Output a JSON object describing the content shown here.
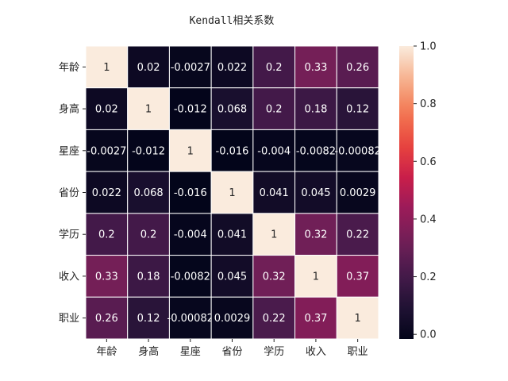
{
  "chart_data": {
    "type": "heatmap",
    "title": "Kendall相关系数",
    "labels": [
      "年龄",
      "身高",
      "星座",
      "省份",
      "学历",
      "收入",
      "职业"
    ],
    "values": [
      [
        1,
        0.02,
        -0.0027,
        0.022,
        0.2,
        0.33,
        0.26
      ],
      [
        0.02,
        1,
        -0.012,
        0.068,
        0.2,
        0.18,
        0.12
      ],
      [
        -0.0027,
        -0.012,
        1,
        -0.016,
        -0.004,
        -0.0082,
        -0.00082
      ],
      [
        0.022,
        0.068,
        -0.016,
        1,
        0.041,
        0.045,
        0.0029
      ],
      [
        0.2,
        0.2,
        -0.004,
        0.041,
        1,
        0.32,
        0.22
      ],
      [
        0.33,
        0.18,
        -0.0082,
        0.045,
        0.32,
        1,
        0.37
      ],
      [
        0.26,
        0.12,
        -0.00082,
        0.0029,
        0.22,
        0.37,
        1
      ]
    ],
    "annotations": [
      [
        "1",
        "0.02",
        "-0.0027",
        "0.022",
        "0.2",
        "0.33",
        "0.26"
      ],
      [
        "0.02",
        "1",
        "-0.012",
        "0.068",
        "0.2",
        "0.18",
        "0.12"
      ],
      [
        "-0.0027",
        "-0.012",
        "1",
        "-0.016",
        "-0.004",
        "-0.0082",
        "-0.00082"
      ],
      [
        "0.022",
        "0.068",
        "-0.016",
        "1",
        "0.041",
        "0.045",
        "0.0029"
      ],
      [
        "0.2",
        "0.2",
        "-0.004",
        "0.041",
        "1",
        "0.32",
        "0.22"
      ],
      [
        "0.33",
        "0.18",
        "-0.0082",
        "0.045",
        "0.32",
        "1",
        "0.37"
      ],
      [
        "0.26",
        "0.12",
        "-0.00082",
        "0.0029",
        "0.22",
        "0.37",
        "1"
      ]
    ],
    "colorbar": {
      "range": [
        -0.016,
        1
      ],
      "ticks": [
        "0.0",
        "0.2",
        "0.4",
        "0.6",
        "0.8",
        "1.0"
      ],
      "tick_values": [
        0,
        0.2,
        0.4,
        0.6,
        0.8,
        1.0
      ],
      "colormap": "rocket"
    },
    "grid": false,
    "cell_separators": "white"
  }
}
